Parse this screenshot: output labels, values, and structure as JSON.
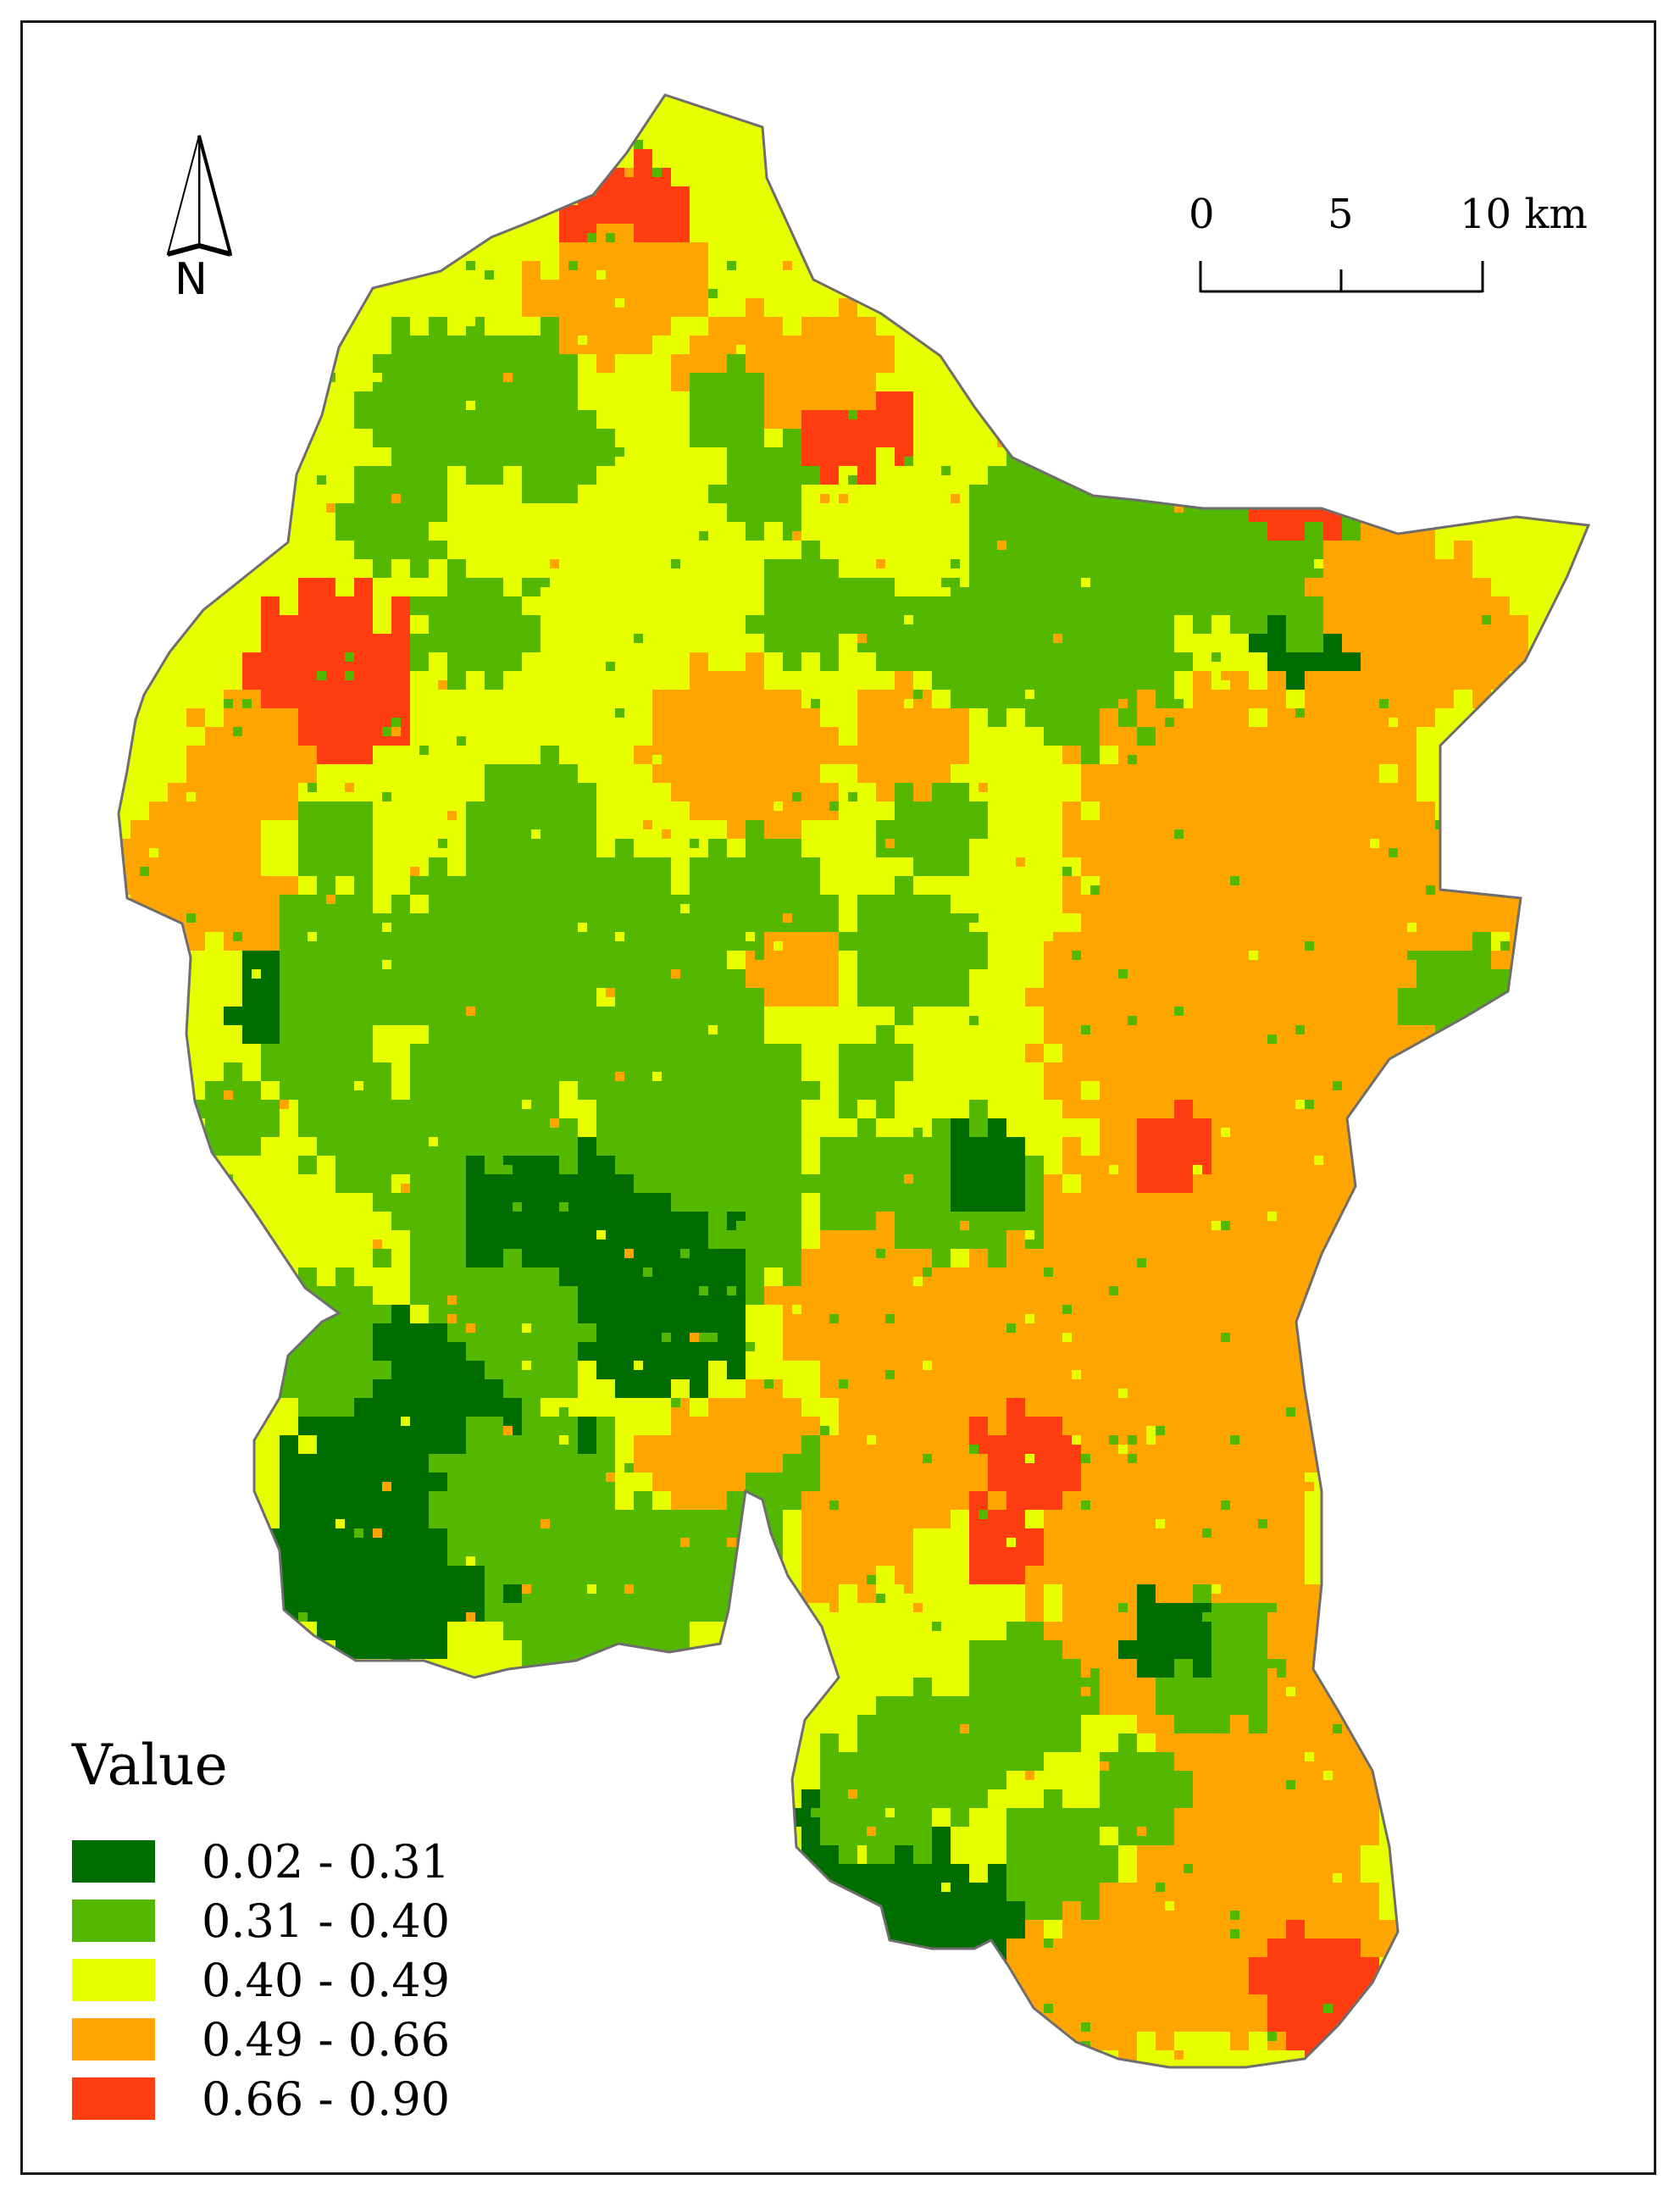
{
  "north_arrow": {
    "label": "N"
  },
  "scale_bar": {
    "ticks": [
      "0",
      "5",
      "10 km"
    ]
  },
  "legend": {
    "title": "Value",
    "classes": [
      {
        "label": "0.02 - 0.31",
        "color": "#006d00"
      },
      {
        "label": "0.31 - 0.40",
        "color": "#55b800"
      },
      {
        "label": "0.40 - 0.49",
        "color": "#e8ff00"
      },
      {
        "label": "0.49 - 0.66",
        "color": "#ffa500"
      },
      {
        "label": "0.66 - 0.90",
        "color": "#ff3d10"
      }
    ]
  },
  "map": {
    "boundary_color": "#6e6e6e",
    "base_color": "#e8ff00"
  }
}
